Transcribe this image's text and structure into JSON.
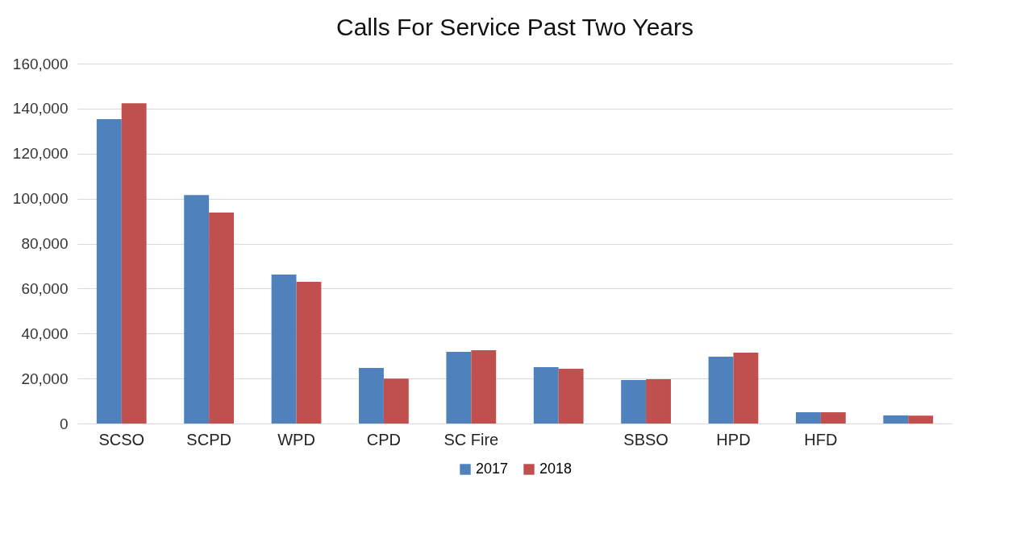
{
  "chart_data": {
    "type": "bar",
    "title": "Calls For Service Past Two Years",
    "categories": [
      "SCSO",
      "SCPD",
      "WPD",
      "CPD",
      "SC Fire",
      null,
      "SBSO",
      "HPD",
      "HFD",
      null
    ],
    "series": [
      {
        "name": "2017",
        "color": "#4f81bd",
        "values": [
          135300,
          101600,
          66200,
          24700,
          31900,
          25100,
          19300,
          29700,
          5000,
          3600
        ]
      },
      {
        "name": "2018",
        "color": "#c0504d",
        "values": [
          142400,
          93800,
          63000,
          20000,
          32600,
          24300,
          19700,
          31500,
          5000,
          3500
        ]
      }
    ],
    "ylim": [
      0,
      160000
    ],
    "yticks": [
      0,
      {
        "value": 20000,
        "label": "20,000"
      },
      {
        "value": 40000,
        "label": "40,000"
      },
      {
        "value": 60000,
        "label": "60,000"
      },
      {
        "value": 80000,
        "label": "80,000"
      },
      {
        "value": 100000,
        "label": "100,000"
      },
      {
        "value": 120000,
        "label": "120,000"
      },
      {
        "value": 140000,
        "label": "140,000"
      },
      {
        "value": 160000,
        "label": "160,000"
      }
    ],
    "grid": "y",
    "legend": "bottom"
  }
}
